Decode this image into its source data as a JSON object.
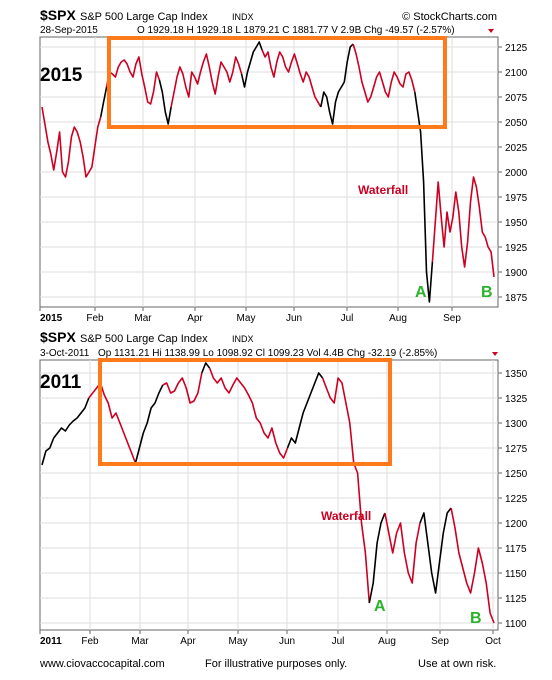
{
  "chart_data": [
    {
      "type": "line",
      "symbol": "$SPX",
      "index_name": "S&P 500 Large Cap Index",
      "exchange": "INDX",
      "date_label": "28-Sep-2015",
      "quote": "O 1929.18  H 1929.18  L 1879.21  C 1881.77  V 2.9B  Chg -49.57 (-2.57%)",
      "source": "© StockCharts.com",
      "year_label": "2015",
      "x_ticks": [
        "2015",
        "Feb",
        "Mar",
        "Apr",
        "May",
        "Jun",
        "Jul",
        "Aug",
        "Sep"
      ],
      "y_ticks": [
        "1875",
        "1900",
        "1925",
        "1950",
        "1975",
        "2000",
        "2025",
        "2050",
        "2075",
        "2100",
        "2125"
      ],
      "ylim": [
        1865,
        2135
      ],
      "annotations": {
        "waterfall": "Waterfall",
        "a": "A",
        "b": "B"
      },
      "series": [
        {
          "values": [
            2065,
            2048,
            2030,
            2018,
            2002,
            2020,
            2040,
            2000,
            1995,
            2010,
            2035,
            2045,
            2040,
            2030,
            2015,
            1995,
            2000,
            2005,
            2025,
            2045,
            2055,
            2070,
            2085,
            2100,
            2098,
            2095,
            2105,
            2110,
            2112,
            2108,
            2100,
            2095,
            2108,
            2115,
            2098,
            2085,
            2070,
            2068,
            2080,
            2100,
            2092,
            2080,
            2060,
            2048,
            2065,
            2080,
            2095,
            2105,
            2098,
            2085,
            2075,
            2100,
            2095,
            2088,
            2100,
            2110,
            2118,
            2105,
            2090,
            2078,
            2095,
            2110,
            2105,
            2100,
            2090,
            2100,
            2115,
            2108,
            2098,
            2085,
            2100,
            2110,
            2120,
            2125,
            2130,
            2122,
            2115,
            2120,
            2105,
            2095,
            2110,
            2120,
            2115,
            2105,
            2100,
            2110,
            2118,
            2108,
            2098,
            2090,
            2100,
            2095,
            2085,
            2075,
            2070,
            2065,
            2080,
            2075,
            2060,
            2048,
            2070,
            2080,
            2085,
            2090,
            2110,
            2125,
            2128,
            2118,
            2105,
            2090,
            2080,
            2070,
            2075,
            2085,
            2095,
            2100,
            2090,
            2080,
            2075,
            2090,
            2100,
            2095,
            2088,
            2085,
            2098,
            2100,
            2092,
            2080,
            2060,
            2040,
            1990,
            1900,
            1870,
            1910,
            1950,
            1990,
            1955,
            1925,
            1960,
            1940,
            1955,
            1980,
            1960,
            1925,
            1905,
            1930,
            1970,
            1995,
            1985,
            1965,
            1940,
            1935,
            1925,
            1920,
            1895
          ],
          "segment_colors": [
            {
              "from": 0,
              "to": 20,
              "color": "#cc0022"
            },
            {
              "from": 20,
              "to": 22,
              "color": "#000000"
            },
            {
              "from": 22,
              "to": 40,
              "color": "#cc0022"
            },
            {
              "from": 40,
              "to": 44,
              "color": "#000000"
            },
            {
              "from": 44,
              "to": 68,
              "color": "#cc0022"
            },
            {
              "from": 68,
              "to": 75,
              "color": "#000000"
            },
            {
              "from": 75,
              "to": 95,
              "color": "#cc0022"
            },
            {
              "from": 95,
              "to": 106,
              "color": "#000000"
            },
            {
              "from": 106,
              "to": 127,
              "color": "#cc0022"
            },
            {
              "from": 127,
              "to": 133,
              "color": "#000000"
            },
            {
              "from": 133,
              "to": 156,
              "color": "#cc0022"
            }
          ]
        }
      ]
    },
    {
      "type": "line",
      "symbol": "$SPX",
      "index_name": "S&P 500 Large Cap Index",
      "exchange": "INDX",
      "date_label": "3-Oct-2011",
      "quote": "Op 1131.21  Hi 1138.99  Lo 1098.92  Cl 1099.23  Vol 4.4B  Chg -32.19 (-2.85%)",
      "year_label": "2011",
      "x_ticks": [
        "2011",
        "Feb",
        "Mar",
        "Apr",
        "May",
        "Jun",
        "Jul",
        "Aug",
        "Sep",
        "Oct"
      ],
      "y_ticks": [
        "1100",
        "1125",
        "1150",
        "1175",
        "1200",
        "1225",
        "1250",
        "1275",
        "1300",
        "1325",
        "1350"
      ],
      "ylim": [
        1093,
        1363
      ],
      "annotations": {
        "waterfall": "Waterfall",
        "a": "A",
        "b": "B"
      },
      "series": [
        {
          "values": [
            1258,
            1272,
            1275,
            1285,
            1290,
            1295,
            1292,
            1298,
            1302,
            1305,
            1310,
            1315,
            1325,
            1330,
            1335,
            1340,
            1328,
            1320,
            1305,
            1310,
            1300,
            1290,
            1280,
            1270,
            1260,
            1275,
            1290,
            1300,
            1315,
            1320,
            1330,
            1338,
            1340,
            1330,
            1332,
            1340,
            1345,
            1335,
            1320,
            1322,
            1330,
            1350,
            1360,
            1355,
            1345,
            1340,
            1345,
            1335,
            1330,
            1338,
            1345,
            1340,
            1335,
            1328,
            1320,
            1305,
            1300,
            1290,
            1285,
            1295,
            1280,
            1270,
            1265,
            1275,
            1285,
            1280,
            1295,
            1310,
            1320,
            1330,
            1340,
            1350,
            1345,
            1335,
            1325,
            1320,
            1345,
            1340,
            1320,
            1300,
            1260,
            1250,
            1200,
            1170,
            1120,
            1140,
            1180,
            1200,
            1210,
            1190,
            1170,
            1190,
            1200,
            1170,
            1150,
            1140,
            1180,
            1200,
            1210,
            1180,
            1150,
            1130,
            1160,
            1190,
            1210,
            1215,
            1195,
            1170,
            1155,
            1140,
            1130,
            1150,
            1175,
            1160,
            1140,
            1110,
            1100
          ],
          "segment_colors": [
            {
              "from": 0,
              "to": 12,
              "color": "#000000"
            },
            {
              "from": 12,
              "to": 24,
              "color": "#cc0022"
            },
            {
              "from": 24,
              "to": 31,
              "color": "#000000"
            },
            {
              "from": 31,
              "to": 41,
              "color": "#cc0022"
            },
            {
              "from": 41,
              "to": 43,
              "color": "#000000"
            },
            {
              "from": 43,
              "to": 63,
              "color": "#cc0022"
            },
            {
              "from": 63,
              "to": 72,
              "color": "#000000"
            },
            {
              "from": 72,
              "to": 84,
              "color": "#cc0022"
            },
            {
              "from": 84,
              "to": 88,
              "color": "#000000"
            },
            {
              "from": 88,
              "to": 97,
              "color": "#cc0022"
            },
            {
              "from": 97,
              "to": 105,
              "color": "#000000"
            },
            {
              "from": 105,
              "to": 117,
              "color": "#cc0022"
            }
          ]
        }
      ]
    }
  ],
  "footer": {
    "left": "www.ciovaccocapital.com",
    "center": "For illustrative purposes only.",
    "right": "Use at own risk."
  },
  "colors": {
    "highlight_box": "#ff7a1a",
    "waterfall": "#cc0022",
    "point_labels": "#2ab32a",
    "grid": "#dddddd",
    "axis": "#666666"
  }
}
